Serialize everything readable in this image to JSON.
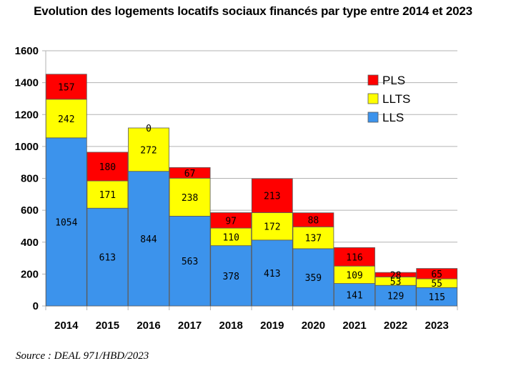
{
  "title": "Evolution des logements locatifs sociaux financés par type entre 2014 et 2023",
  "source": "Source : DEAL 971/HBD/2023",
  "chart_data": {
    "type": "bar",
    "stacked": true,
    "title": "Evolution des logements locatifs sociaux financés par type entre 2014 et 2023",
    "categories": [
      "2014",
      "2015",
      "2016",
      "2017",
      "2018",
      "2019",
      "2020",
      "2021",
      "2022",
      "2023"
    ],
    "series": [
      {
        "name": "LLS",
        "color": "#3c93ec",
        "values": [
          1054,
          613,
          844,
          563,
          378,
          413,
          359,
          141,
          129,
          115
        ]
      },
      {
        "name": "LLTS",
        "color": "#ffff00",
        "values": [
          242,
          171,
          272,
          238,
          110,
          172,
          137,
          109,
          53,
          55
        ]
      },
      {
        "name": "PLS",
        "color": "#ff0000",
        "values": [
          157,
          180,
          0,
          67,
          97,
          213,
          88,
          116,
          28,
          65
        ]
      }
    ],
    "ylim": [
      0,
      1600
    ],
    "yticks": [
      0,
      200,
      400,
      600,
      800,
      1000,
      1200,
      1400,
      1600
    ],
    "grid": true,
    "legend": {
      "position": "top-right",
      "order": [
        "PLS",
        "LLTS",
        "LLS"
      ]
    },
    "xlabel": "",
    "ylabel": ""
  }
}
